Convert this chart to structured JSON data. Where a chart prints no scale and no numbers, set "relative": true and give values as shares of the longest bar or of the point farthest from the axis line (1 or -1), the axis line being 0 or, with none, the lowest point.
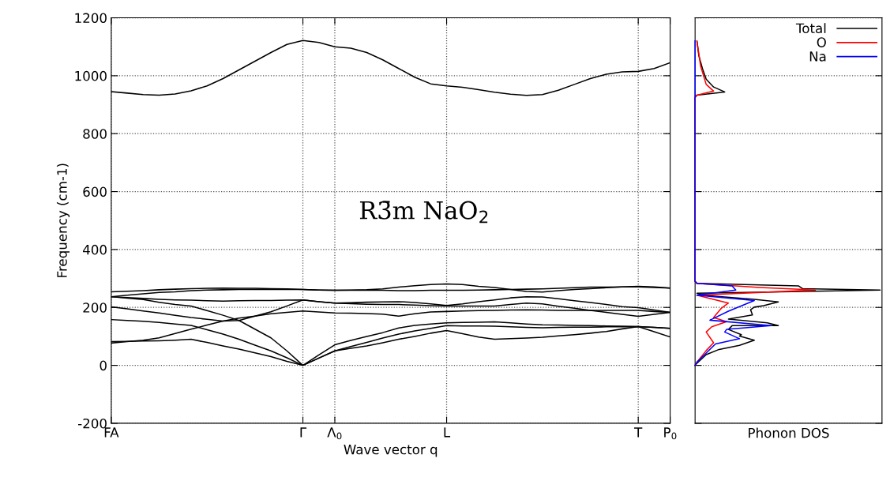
{
  "chart_data": [
    {
      "type": "line",
      "xlabel": "Wave vector q",
      "ylabel": "Frequency (cm-1)",
      "annotations": [
        "R3̄m NaO$_{2}$"
      ],
      "categories": [
        "FA",
        null,
        null,
        null,
        null,
        null,
        null,
        null,
        null,
        null,
        null,
        null,
        "Γ",
        null,
        "Λ$_{0}$",
        null,
        null,
        null,
        null,
        null,
        null,
        "L",
        null,
        null,
        null,
        null,
        null,
        null,
        null,
        null,
        null,
        null,
        null,
        "T",
        null,
        "P$_{0}$"
      ],
      "series": [
        {
          "color": "#000000",
          "values": [
            945,
            940,
            935,
            933,
            937,
            948,
            965,
            990,
            1020,
            1050,
            1080,
            1108,
            1122,
            1115,
            1100,
            1095,
            1080,
            1055,
            1025,
            995,
            972,
            965,
            960,
            952,
            943,
            936,
            932,
            935,
            950,
            970,
            990,
            1005,
            1013,
            1015,
            1025,
            1045
          ]
        },
        {
          "color": "#000000",
          "values": [
            254,
            256,
            258,
            261,
            263,
            265,
            266,
            267,
            266,
            266,
            265,
            264,
            262,
            260,
            259,
            260,
            261,
            264,
            270,
            275,
            279,
            281,
            279,
            273,
            269,
            262,
            255,
            253,
            258,
            262,
            265,
            268,
            271,
            273,
            271,
            267
          ]
        },
        {
          "color": "#000000",
          "values": [
            237,
            242,
            247,
            252,
            254,
            258,
            260,
            261,
            262,
            262,
            262,
            262,
            262,
            260,
            259,
            259,
            259,
            259,
            258,
            258,
            259,
            259,
            259,
            260,
            261,
            262,
            263,
            264,
            266,
            268,
            270,
            270,
            271,
            271,
            269,
            267
          ]
        },
        {
          "color": "#000000",
          "values": [
            237,
            234,
            231,
            228,
            226,
            225,
            223,
            222,
            223,
            224,
            224,
            225,
            226,
            220,
            215,
            216,
            218,
            219,
            220,
            217,
            212,
            207,
            212,
            220,
            226,
            233,
            237,
            236,
            230,
            223,
            217,
            210,
            203,
            199,
            191,
            183
          ]
        },
        {
          "color": "#000000",
          "values": [
            202,
            195,
            188,
            181,
            173,
            165,
            159,
            153,
            155,
            170,
            185,
            205,
            226,
            220,
            215,
            213,
            211,
            210,
            210,
            208,
            206,
            205,
            205,
            205,
            205,
            210,
            215,
            212,
            204,
            197,
            190,
            183,
            176,
            169,
            176,
            183
          ]
        },
        {
          "color": "#000000",
          "values": [
            77,
            82,
            87,
            95,
            110,
            125,
            139,
            153,
            163,
            170,
            178,
            183,
            188,
            184,
            181,
            180,
            179,
            177,
            170,
            178,
            184,
            186,
            188,
            189,
            190,
            191,
            192,
            191,
            190,
            190,
            190,
            190,
            190,
            190,
            186,
            183
          ]
        },
        {
          "color": "#000000",
          "values": [
            237,
            232,
            227,
            218,
            210,
            205,
            189,
            173,
            155,
            125,
            95,
            50,
            0,
            36,
            71,
            86,
            100,
            113,
            129,
            138,
            143,
            147,
            148,
            149,
            150,
            147,
            143,
            140,
            139,
            138,
            137,
            136,
            135,
            134,
            131,
            128
          ]
        },
        {
          "color": "#000000",
          "values": [
            158,
            155,
            152,
            148,
            143,
            138,
            123,
            108,
            90,
            70,
            50,
            26,
            0,
            25,
            50,
            65,
            79,
            94,
            108,
            119,
            128,
            137,
            136,
            136,
            135,
            133,
            131,
            130,
            131,
            132,
            132,
            133,
            133,
            134,
            131,
            128
          ]
        },
        {
          "color": "#000000",
          "values": [
            82,
            83,
            84,
            85,
            87,
            90,
            79,
            67,
            56,
            43,
            30,
            14,
            0,
            25,
            50,
            59,
            67,
            78,
            90,
            100,
            111,
            120,
            109,
            98,
            90,
            92,
            94,
            97,
            102,
            106,
            111,
            117,
            126,
            134,
            116,
            98
          ]
        }
      ],
      "ylim": [
        -200,
        1200
      ],
      "yticks": [
        -200,
        0,
        200,
        400,
        600,
        800,
        1000,
        1200
      ],
      "grid": true,
      "line_style": "solid",
      "legend": false
    },
    {
      "type": "line",
      "xlabel": "Phonon DOS",
      "tick_labels": false,
      "relative": true,
      "orientation": "horizontal",
      "series": [
        {
          "name": "Total",
          "color": "#000000",
          "x": [
            0,
            7,
            37,
            55,
            69,
            87,
            101,
            106,
            124,
            137,
            137,
            147,
            160,
            174,
            192,
            201,
            206,
            219,
            228,
            242,
            249,
            260,
            265,
            274,
            283,
            290,
            925,
            933,
            944,
            961,
            988,
            1024,
            1070,
            1119
          ],
          "values": [
            0,
            0.01,
            0.06,
            0.13,
            0.24,
            0.32,
            0.24,
            0.25,
            0.18,
            0.2,
            0.45,
            0.39,
            0.18,
            0.31,
            0.3,
            0.32,
            0.37,
            0.45,
            0.32,
            0.04,
            0.01,
            1,
            0.58,
            0.56,
            0.01,
            0,
            0,
            0.01,
            0.16,
            0.1,
            0.06,
            0.04,
            0.02,
            0.01
          ]
        },
        {
          "name": "O",
          "color": "#ff0000",
          "x": [
            0,
            11,
            51,
            78,
            115,
            133,
            151,
            165,
            196,
            215,
            242,
            260,
            269,
            283,
            290,
            925,
            933,
            947,
            970,
            1033,
            1119
          ],
          "values": [
            0,
            0.01,
            0.06,
            0.1,
            0.06,
            0.09,
            0.17,
            0.1,
            0.14,
            0.18,
            0.01,
            0.65,
            0.35,
            0.01,
            0,
            0,
            0.01,
            0.1,
            0.06,
            0.03,
            0.01
          ]
        },
        {
          "name": "Na",
          "color": "#0000ff",
          "x": [
            0,
            11,
            74,
            92,
            115,
            124,
            137,
            156,
            187,
            224,
            242,
            260,
            274,
            283,
            290,
            1120
          ],
          "values": [
            0,
            0.01,
            0.11,
            0.24,
            0.16,
            0.17,
            0.41,
            0.08,
            0.18,
            0.32,
            0.01,
            0.22,
            0.2,
            0.01,
            0,
            0
          ]
        }
      ],
      "ylim": [
        -200,
        1200
      ],
      "yticks": [
        -200,
        0,
        200,
        400,
        600,
        800,
        1000,
        1200
      ],
      "grid": true,
      "line_style": "solid",
      "legend": "top right"
    }
  ]
}
